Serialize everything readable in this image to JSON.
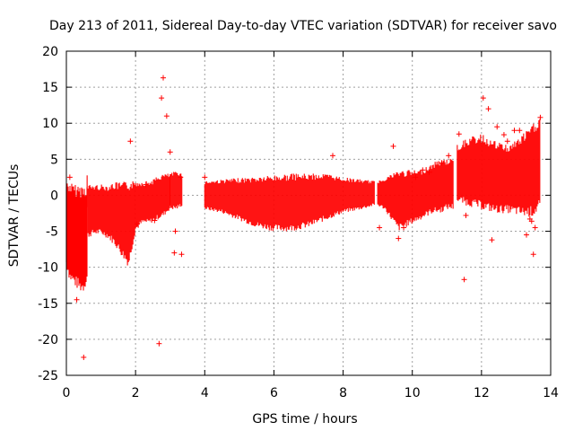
{
  "chart_data": {
    "type": "scatter",
    "title": "Day 213 of 2011, Sidereal Day-to-day VTEC variation (SDTVAR) for receiver savo",
    "xlabel": "GPS time / hours",
    "ylabel": "SDTVAR / TECUs",
    "xlim": [
      0,
      14
    ],
    "ylim": [
      -25,
      20
    ],
    "xticks": [
      "0",
      "2",
      "4",
      "6",
      "8",
      "10",
      "12",
      "14"
    ],
    "yticks": [
      "20",
      "15",
      "10",
      "5",
      "0",
      "-5",
      "-10",
      "-15",
      "-20",
      "-25"
    ],
    "grid": true,
    "color": "#ff0000",
    "marker": "plus",
    "series": [
      {
        "name": "SDTVAR",
        "band_segments": [
          {
            "x": [
              0.0,
              0.1,
              0.2,
              0.3,
              0.4,
              0.5,
              0.6
            ],
            "low": [
              -10,
              -12,
              -12.5,
              -13,
              -13.5,
              -13.5,
              -12
            ],
            "high": [
              2,
              2,
              1.5,
              1.5,
              1.5,
              1.5,
              1.5
            ]
          },
          {
            "x": [
              0.6,
              0.8,
              1.0,
              1.2,
              1.4,
              1.6,
              1.8,
              2.0,
              2.2,
              2.4,
              2.6,
              2.8,
              3.0
            ],
            "low": [
              -6,
              -5.5,
              -5.5,
              -6,
              -7,
              -8.5,
              -10,
              -5,
              -4,
              -4,
              -3.5,
              -3,
              -2
            ],
            "high": [
              1.5,
              1.5,
              1.5,
              1.5,
              1.8,
              1.8,
              2,
              2,
              2,
              2,
              2.5,
              3,
              3
            ]
          },
          {
            "x": [
              3.0,
              3.2,
              3.35
            ],
            "low": [
              -2,
              -2,
              -1.5
            ],
            "high": [
              3,
              3.5,
              3
            ]
          },
          {
            "x": [
              4.0,
              4.5,
              5.0,
              5.5,
              6.0,
              6.5,
              7.0,
              7.5,
              8.0,
              8.5,
              8.9
            ],
            "low": [
              -2,
              -2.5,
              -3.5,
              -4.5,
              -5,
              -5,
              -4.5,
              -3.5,
              -2.5,
              -2,
              -1.5
            ],
            "high": [
              2,
              2.2,
              2.4,
              2.6,
              2.8,
              3,
              3,
              3,
              2.5,
              2.2,
              2
            ]
          },
          {
            "x": [
              9.0,
              9.2,
              9.4,
              9.6,
              9.8,
              10.0,
              10.2,
              10.4,
              10.6,
              10.8,
              11.0,
              11.2
            ],
            "low": [
              -1.5,
              -2,
              -3.5,
              -5,
              -4.5,
              -4,
              -3.5,
              -3,
              -2.5,
              -2.5,
              -2,
              -2
            ],
            "high": [
              2,
              2.5,
              3,
              3.5,
              3.5,
              3.5,
              3.5,
              4,
              4.5,
              5,
              5,
              5.5
            ]
          },
          {
            "x": [
              11.3,
              11.6,
              12.0,
              12.4,
              12.8,
              13.2,
              13.5,
              13.7
            ],
            "low": [
              -1,
              -1.5,
              -2,
              -2.5,
              -2.5,
              -3,
              -3,
              -2
            ],
            "high": [
              7,
              8,
              8.5,
              7.5,
              7,
              8.5,
              10,
              11
            ]
          }
        ],
        "outliers": [
          [
            0.1,
            2.5
          ],
          [
            0.3,
            -14.5
          ],
          [
            0.45,
            -12
          ],
          [
            0.5,
            -22.5
          ],
          [
            1.85,
            7.5
          ],
          [
            2.05,
            -4
          ],
          [
            2.3,
            1.5
          ],
          [
            2.55,
            -3.5
          ],
          [
            2.68,
            -20.6
          ],
          [
            2.75,
            13.5
          ],
          [
            2.8,
            16.3
          ],
          [
            2.9,
            11
          ],
          [
            3.0,
            6
          ],
          [
            3.12,
            -8
          ],
          [
            3.15,
            -5
          ],
          [
            3.33,
            -8.2
          ],
          [
            3.3,
            2.5
          ],
          [
            4.0,
            2.5
          ],
          [
            7.7,
            5.5
          ],
          [
            9.05,
            -4.5
          ],
          [
            9.45,
            6.8
          ],
          [
            9.6,
            -6
          ],
          [
            9.75,
            -4.5
          ],
          [
            10.1,
            2.5
          ],
          [
            10.3,
            3.5
          ],
          [
            10.5,
            3.2
          ],
          [
            10.85,
            4.5
          ],
          [
            11.05,
            5.5
          ],
          [
            11.35,
            8.5
          ],
          [
            11.5,
            -11.7
          ],
          [
            11.55,
            -2.8
          ],
          [
            12.05,
            13.5
          ],
          [
            12.3,
            -6.2
          ],
          [
            12.2,
            12
          ],
          [
            12.45,
            9.5
          ],
          [
            12.65,
            8.4
          ],
          [
            12.75,
            7.5
          ],
          [
            12.95,
            9
          ],
          [
            13.1,
            9
          ],
          [
            13.3,
            -5.5
          ],
          [
            13.4,
            -3.3
          ],
          [
            13.45,
            -3.6
          ],
          [
            13.5,
            -8.2
          ],
          [
            13.55,
            -4.5
          ],
          [
            13.7,
            10.8
          ]
        ]
      }
    ]
  }
}
